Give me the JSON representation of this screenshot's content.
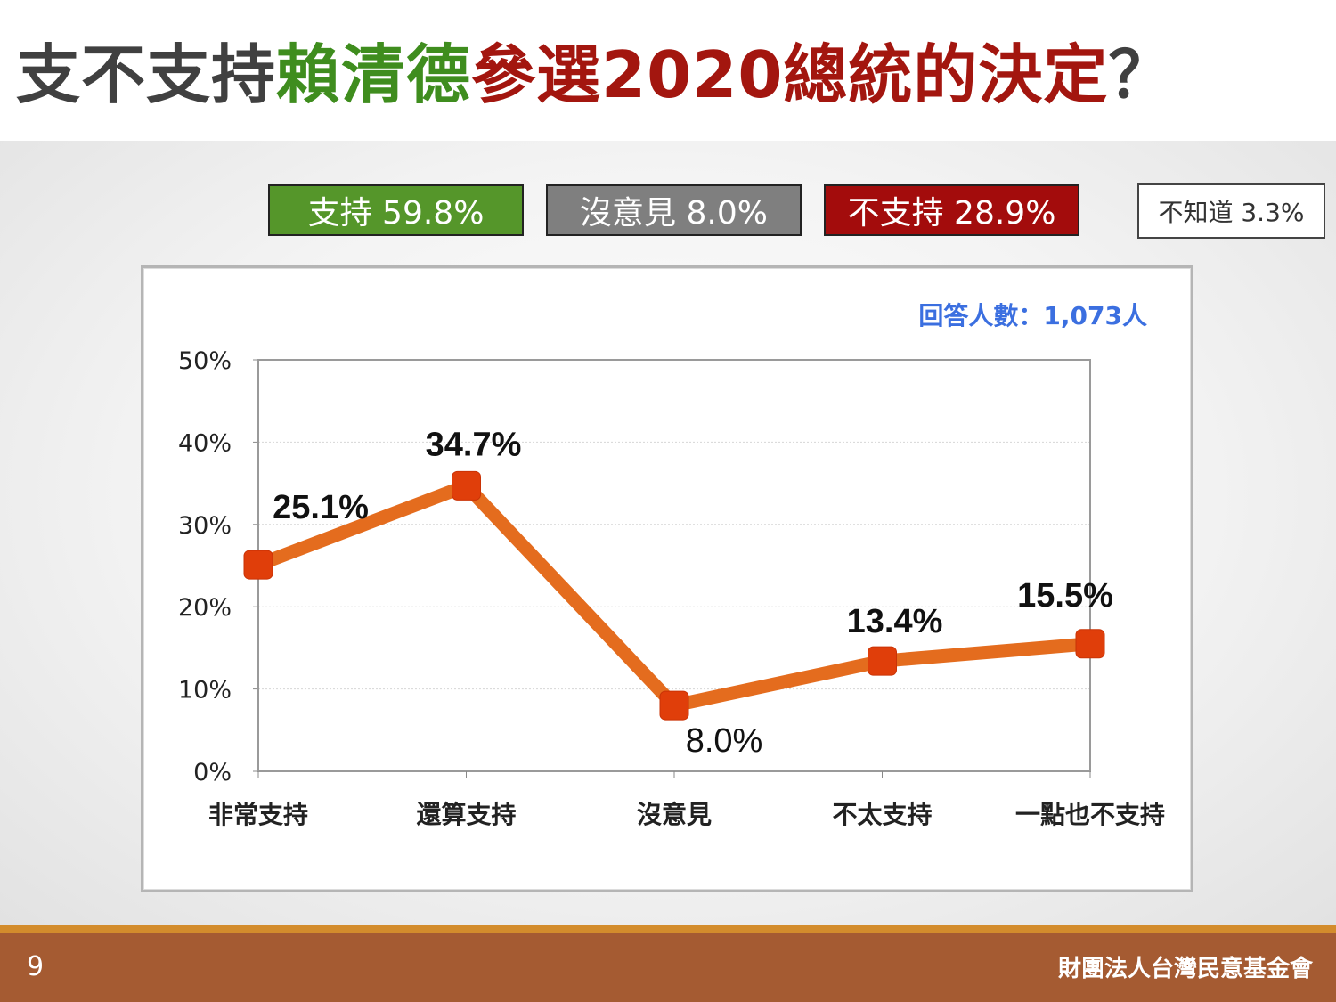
{
  "slide": {
    "title_parts": [
      "支不支持",
      "賴清德",
      "參選2020總統的決定",
      "？"
    ],
    "page_number": "9",
    "organization": "財團法人台灣民意基金會",
    "colors": {
      "support": "#55962a",
      "neutral": "#7f7f7f",
      "oppose": "#a30c0c",
      "title_green": "#3f8d1e",
      "title_red": "#a3160f",
      "footer": "#a55b32",
      "footer_line": "#d38c2c",
      "line": "#e46c1e",
      "marker": "#e03e0a",
      "respondents": "#3b6fe0"
    }
  },
  "summary": {
    "support": "支持 59.8%",
    "neutral": "沒意見 8.0%",
    "oppose": "不支持 28.9%",
    "unknown": "不知道 3.3%"
  },
  "chart_data": {
    "type": "line",
    "categories": [
      "非常支持",
      "還算支持",
      "沒意見",
      "不太支持",
      "一點也不支持"
    ],
    "values": [
      25.1,
      34.7,
      8.0,
      13.4,
      15.5
    ],
    "data_labels": [
      "25.1%",
      "34.7%",
      "8.0%",
      "13.4%",
      "15.5%"
    ],
    "y_ticks": [
      "0%",
      "10%",
      "20%",
      "30%",
      "40%",
      "50%"
    ],
    "ylim": [
      0,
      50
    ],
    "grid": true,
    "respondents_label": "回答人數：1,073人"
  }
}
